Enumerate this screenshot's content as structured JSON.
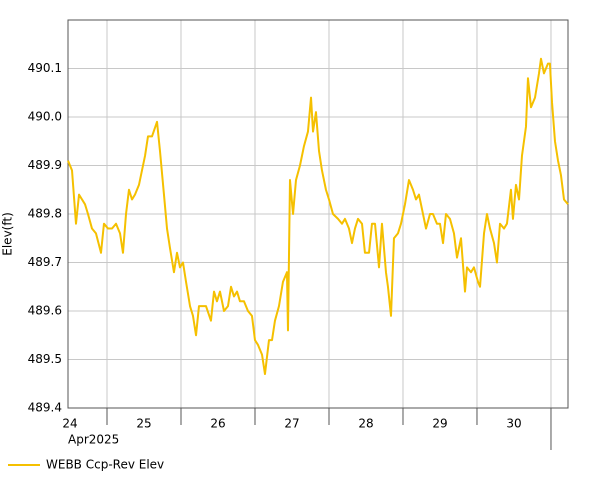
{
  "chart_data": {
    "type": "line",
    "ylabel": "Elev(ft)",
    "xlabel": "Apr2025",
    "x": [
      24.473,
      24.527,
      24.581,
      24.622,
      24.703,
      24.743,
      24.797,
      24.851,
      24.919,
      24.959,
      25.014,
      25.068,
      25.122,
      25.176,
      25.216,
      25.257,
      25.297,
      25.338,
      25.378,
      25.432,
      25.473,
      25.514,
      25.554,
      25.608,
      25.676,
      25.716,
      25.77,
      25.811,
      25.851,
      25.905,
      25.946,
      25.986,
      26.027,
      26.068,
      26.122,
      26.162,
      26.203,
      26.243,
      26.297,
      26.338,
      26.405,
      26.446,
      26.486,
      26.527,
      26.581,
      26.635,
      26.676,
      26.716,
      26.757,
      26.797,
      26.851,
      26.905,
      26.959,
      27.0,
      27.041,
      27.095,
      27.135,
      27.189,
      27.23,
      27.27,
      27.324,
      27.378,
      27.432,
      27.446,
      27.473,
      27.514,
      27.554,
      27.608,
      27.662,
      27.716,
      27.757,
      27.784,
      27.824,
      27.865,
      27.905,
      27.959,
      28.0,
      28.054,
      28.122,
      28.176,
      28.216,
      28.27,
      28.311,
      28.351,
      28.392,
      28.446,
      28.486,
      28.541,
      28.581,
      28.622,
      28.676,
      28.716,
      28.77,
      28.797,
      28.838,
      28.878,
      28.932,
      28.973,
      29.027,
      29.081,
      29.135,
      29.176,
      29.216,
      29.257,
      29.311,
      29.365,
      29.405,
      29.459,
      29.5,
      29.541,
      29.581,
      29.635,
      29.689,
      29.73,
      29.784,
      29.838,
      29.865,
      29.919,
      29.959,
      30.014,
      30.041,
      30.095,
      30.135,
      30.176,
      30.23,
      30.27,
      30.311,
      30.365,
      30.405,
      30.459,
      30.486,
      30.527,
      30.568,
      30.608,
      30.662,
      30.689,
      30.73,
      30.784,
      30.838,
      30.865,
      30.905,
      30.959,
      30.986,
      31.014,
      31.054,
      31.095,
      31.135,
      31.176,
      31.23
    ],
    "series": [
      {
        "name": "WEBB Ccp-Rev Elev",
        "color": "#f5c000",
        "values": [
          489.91,
          489.89,
          489.78,
          489.84,
          489.82,
          489.8,
          489.77,
          489.76,
          489.72,
          489.78,
          489.77,
          489.77,
          489.78,
          489.76,
          489.72,
          489.8,
          489.85,
          489.83,
          489.84,
          489.86,
          489.89,
          489.92,
          489.96,
          489.96,
          489.99,
          489.93,
          489.84,
          489.77,
          489.73,
          489.68,
          489.72,
          489.69,
          489.7,
          489.66,
          489.61,
          489.59,
          489.55,
          489.61,
          489.61,
          489.61,
          489.58,
          489.64,
          489.62,
          489.64,
          489.6,
          489.61,
          489.65,
          489.63,
          489.64,
          489.62,
          489.62,
          489.6,
          489.59,
          489.54,
          489.53,
          489.51,
          489.47,
          489.54,
          489.54,
          489.58,
          489.61,
          489.66,
          489.68,
          489.56,
          489.87,
          489.8,
          489.87,
          489.9,
          489.94,
          489.97,
          490.04,
          489.97,
          490.01,
          489.93,
          489.89,
          489.85,
          489.83,
          489.8,
          489.79,
          489.78,
          489.79,
          489.77,
          489.74,
          489.77,
          489.79,
          489.78,
          489.72,
          489.72,
          489.78,
          489.78,
          489.69,
          489.78,
          489.68,
          489.65,
          489.59,
          489.75,
          489.76,
          489.78,
          489.82,
          489.87,
          489.85,
          489.83,
          489.84,
          489.81,
          489.77,
          489.8,
          489.8,
          489.78,
          489.78,
          489.74,
          489.8,
          489.79,
          489.76,
          489.71,
          489.75,
          489.64,
          489.69,
          489.68,
          489.69,
          489.66,
          489.65,
          489.76,
          489.8,
          489.77,
          489.74,
          489.7,
          489.78,
          489.77,
          489.78,
          489.85,
          489.79,
          489.86,
          489.83,
          489.92,
          489.98,
          490.08,
          490.02,
          490.04,
          490.09,
          490.12,
          490.09,
          490.11,
          490.11,
          490.03,
          489.95,
          489.91,
          489.88,
          489.83,
          489.82
        ]
      }
    ],
    "xlim": [
      24.473,
      31.23
    ],
    "xticks": [
      {
        "value": 24.5,
        "label": "24"
      },
      {
        "value": 25.5,
        "label": "25"
      },
      {
        "value": 26.5,
        "label": "26"
      },
      {
        "value": 27.5,
        "label": "27"
      },
      {
        "value": 28.5,
        "label": "28"
      },
      {
        "value": 29.5,
        "label": "29"
      },
      {
        "value": 30.5,
        "label": "30"
      }
    ],
    "xgrid": [
      25,
      26,
      27,
      28,
      29,
      30,
      31
    ],
    "ylim": [
      489.4,
      490.2
    ],
    "yticks": [
      489.4,
      489.5,
      489.6,
      489.7,
      489.8,
      489.9,
      {
        "value": 490,
        "label": "490.0"
      },
      490.1
    ],
    "grid": true
  }
}
